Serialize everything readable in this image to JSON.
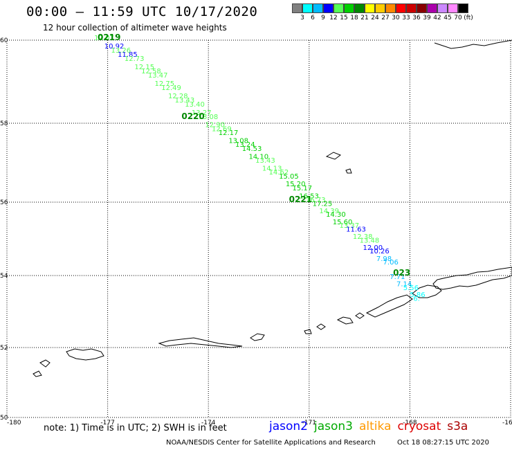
{
  "title": "00:00 – 11:59 UTC 10/17/2020",
  "subtitle": "12 hour collection of altimeter wave heights",
  "legend": {
    "colors": [
      "#808080",
      "#00ffff",
      "#00bbff",
      "#0000ff",
      "#55ff55",
      "#00d000",
      "#008800",
      "#ffff00",
      "#ffcc00",
      "#ff8800",
      "#ff0000",
      "#cc0000",
      "#880000",
      "#aa00aa",
      "#cc88ff",
      "#ff88ff",
      "#000000"
    ],
    "labels": [
      "3",
      "6",
      "9",
      "12",
      "15",
      "18",
      "21",
      "24",
      "27",
      "30",
      "33",
      "36",
      "39",
      "42",
      "45",
      "70",
      "(ft)"
    ]
  },
  "axes": {
    "lat_ticks": [
      "60",
      "58",
      "56",
      "54",
      "52",
      "50"
    ],
    "lon_ticks": [
      "-180",
      "-177",
      "-174",
      "-171",
      "-168",
      "-16"
    ]
  },
  "track_labels": [
    {
      "text": "0219",
      "lon": -177.3,
      "lat": 60.0,
      "color": "#008800"
    },
    {
      "text": "0220",
      "lon": -174.8,
      "lat": 58.1,
      "color": "#008800"
    },
    {
      "text": "0221",
      "lon": -171.6,
      "lat": 56.0,
      "color": "#008800"
    },
    {
      "text": "023",
      "lon": -168.5,
      "lat": 54.0,
      "color": "#008800"
    }
  ],
  "observations": [
    {
      "text": "12.07",
      "lon": -177.4,
      "lat": 60.0,
      "color": "#55ff55"
    },
    {
      "text": "10.92",
      "lon": -177.1,
      "lat": 59.8,
      "color": "#0000ff"
    },
    {
      "text": "13.26",
      "lon": -176.9,
      "lat": 59.7,
      "color": "#55ff55"
    },
    {
      "text": "11.85",
      "lon": -176.7,
      "lat": 59.6,
      "color": "#0000ff"
    },
    {
      "text": "12.73",
      "lon": -176.5,
      "lat": 59.5,
      "color": "#55ff55"
    },
    {
      "text": "12.15",
      "lon": -176.2,
      "lat": 59.3,
      "color": "#55ff55"
    },
    {
      "text": "12.58",
      "lon": -176.0,
      "lat": 59.2,
      "color": "#55ff55"
    },
    {
      "text": "13.47",
      "lon": -175.8,
      "lat": 59.1,
      "color": "#55ff55"
    },
    {
      "text": "12.75",
      "lon": -175.6,
      "lat": 58.9,
      "color": "#55ff55"
    },
    {
      "text": "12.49",
      "lon": -175.4,
      "lat": 58.8,
      "color": "#55ff55"
    },
    {
      "text": "12.28",
      "lon": -175.2,
      "lat": 58.6,
      "color": "#55ff55"
    },
    {
      "text": "13.43",
      "lon": -175.0,
      "lat": 58.5,
      "color": "#55ff55"
    },
    {
      "text": "13.40",
      "lon": -174.7,
      "lat": 58.4,
      "color": "#55ff55"
    },
    {
      "text": "13.27",
      "lon": -174.5,
      "lat": 58.2,
      "color": "#55ff55"
    },
    {
      "text": "13.08",
      "lon": -174.3,
      "lat": 58.1,
      "color": "#55ff55"
    },
    {
      "text": "12.90",
      "lon": -174.1,
      "lat": 57.9,
      "color": "#55ff55"
    },
    {
      "text": "12.69",
      "lon": -173.9,
      "lat": 57.8,
      "color": "#55ff55"
    },
    {
      "text": "12.17",
      "lon": -173.7,
      "lat": 57.7,
      "color": "#00d000"
    },
    {
      "text": "13.08",
      "lon": -173.4,
      "lat": 57.5,
      "color": "#00d000"
    },
    {
      "text": "13.24",
      "lon": -173.2,
      "lat": 57.4,
      "color": "#00d000"
    },
    {
      "text": "14.53",
      "lon": -173.0,
      "lat": 57.3,
      "color": "#00d000"
    },
    {
      "text": "14.10",
      "lon": -172.8,
      "lat": 57.1,
      "color": "#00d000"
    },
    {
      "text": "13.43",
      "lon": -172.6,
      "lat": 57.0,
      "color": "#55ff55"
    },
    {
      "text": "14.13",
      "lon": -172.4,
      "lat": 56.8,
      "color": "#55ff55"
    },
    {
      "text": "14.62",
      "lon": -172.2,
      "lat": 56.7,
      "color": "#55ff55"
    },
    {
      "text": "15.05",
      "lon": -171.9,
      "lat": 56.6,
      "color": "#00d000"
    },
    {
      "text": "15.20",
      "lon": -171.7,
      "lat": 56.4,
      "color": "#00d000"
    },
    {
      "text": "15.17",
      "lon": -171.5,
      "lat": 56.3,
      "color": "#00d000"
    },
    {
      "text": "16.53",
      "lon": -171.3,
      "lat": 56.1,
      "color": "#00d000"
    },
    {
      "text": "16.73",
      "lon": -171.1,
      "lat": 56.0,
      "color": "#55ff55"
    },
    {
      "text": "17.25",
      "lon": -170.9,
      "lat": 55.9,
      "color": "#00d000"
    },
    {
      "text": "14.39",
      "lon": -170.7,
      "lat": 55.7,
      "color": "#55ff55"
    },
    {
      "text": "14.30",
      "lon": -170.5,
      "lat": 55.6,
      "color": "#00d000"
    },
    {
      "text": "15.60",
      "lon": -170.3,
      "lat": 55.4,
      "color": "#00d000"
    },
    {
      "text": "13.37",
      "lon": -170.1,
      "lat": 55.3,
      "color": "#55ff55"
    },
    {
      "text": "11.63",
      "lon": -169.9,
      "lat": 55.2,
      "color": "#0000ff"
    },
    {
      "text": "12.38",
      "lon": -169.7,
      "lat": 55.0,
      "color": "#55ff55"
    },
    {
      "text": "13.48",
      "lon": -169.5,
      "lat": 54.9,
      "color": "#55ff55"
    },
    {
      "text": "12.00",
      "lon": -169.4,
      "lat": 54.7,
      "color": "#0000ff"
    },
    {
      "text": "10.26",
      "lon": -169.2,
      "lat": 54.6,
      "color": "#0000ff"
    },
    {
      "text": "7.98",
      "lon": -169.0,
      "lat": 54.4,
      "color": "#00bbff"
    },
    {
      "text": "7.06",
      "lon": -168.8,
      "lat": 54.3,
      "color": "#00bbff"
    },
    {
      "text": "7.71",
      "lon": -168.6,
      "lat": 53.9,
      "color": "#00bbff"
    },
    {
      "text": "7.14",
      "lon": -168.4,
      "lat": 53.7,
      "color": "#00bbff"
    },
    {
      "text": "5.56",
      "lon": -168.2,
      "lat": 53.6,
      "color": "#00ffff"
    },
    {
      "text": "5.86",
      "lon": -168.0,
      "lat": 53.4,
      "color": "#00ffff"
    },
    {
      "text": "6.",
      "lon": -167.9,
      "lat": 53.3,
      "color": "#00ffff"
    }
  ],
  "note": "note: 1) Time is in UTC; 2) SWH is in feet",
  "satellites": [
    {
      "name": "jason2",
      "color": "#0000ff"
    },
    {
      "name": "jason3",
      "color": "#00aa00"
    },
    {
      "name": "altika",
      "color": "#ff9900"
    },
    {
      "name": "cryosat",
      "color": "#dd0000"
    },
    {
      "name": "s3a",
      "color": "#aa0000"
    }
  ],
  "footer": {
    "org": "NOAA/NESDIS Center for Satellite Applications and Research",
    "timestamp": "Oct 18 08:27:15 UTC 2020"
  }
}
